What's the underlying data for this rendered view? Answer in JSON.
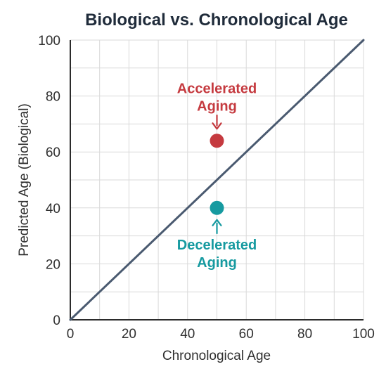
{
  "chart_data": {
    "type": "scatter",
    "title": "Biological vs. Chronological Age",
    "xlabel": "Chronological Age",
    "ylabel": "Predicted Age (Biological)",
    "xlim": [
      0,
      100
    ],
    "ylim": [
      0,
      100
    ],
    "x_ticks": [
      0,
      20,
      40,
      60,
      80,
      100
    ],
    "y_ticks": [
      0,
      20,
      40,
      60,
      80,
      100
    ],
    "grid": true,
    "grid_step": 10,
    "reference_line": {
      "x": [
        0,
        100
      ],
      "y": [
        0,
        100
      ],
      "color": "#4a5a70"
    },
    "points": [
      {
        "x": 50,
        "y": 64,
        "color": "#c53a3f"
      },
      {
        "x": 50,
        "y": 40,
        "color": "#169aa0"
      }
    ],
    "annotations": [
      {
        "lines": [
          "Accelerated",
          "Aging"
        ],
        "color": "#c53a3f",
        "anchor_x": 50,
        "target_y": 64,
        "position": "above"
      },
      {
        "lines": [
          "Decelerated",
          "Aging"
        ],
        "color": "#169aa0",
        "anchor_x": 50,
        "target_y": 40,
        "position": "below"
      }
    ],
    "colors": {
      "title": "#1f2b3a",
      "axis": "#2b2b2b",
      "grid": "#d9d9d9",
      "tick_label": "#2f2f2f"
    }
  }
}
